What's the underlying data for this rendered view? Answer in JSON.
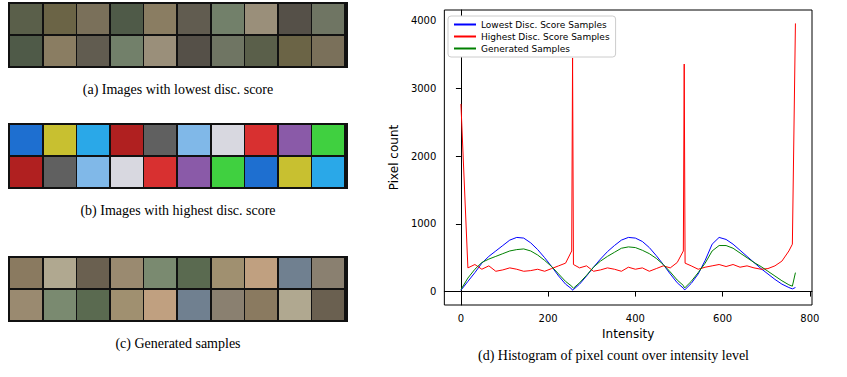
{
  "panels": [
    {
      "caption": "(a) Images with lowest disc. score"
    },
    {
      "caption": "(b) Images with highest disc. score"
    },
    {
      "caption": "(c) Generated samples"
    }
  ],
  "chart_data": {
    "type": "line",
    "title": "(d) Histogram of pixel count over intensity level",
    "x_label": "Intensity",
    "y_label": "Pixel count",
    "x": [
      0,
      16,
      32,
      48,
      64,
      80,
      96,
      112,
      128,
      144,
      160,
      176,
      192,
      208,
      224,
      240,
      254,
      256,
      258,
      272,
      288,
      304,
      320,
      336,
      352,
      368,
      384,
      400,
      416,
      432,
      448,
      464,
      480,
      496,
      510,
      512,
      514,
      528,
      544,
      560,
      576,
      592,
      608,
      624,
      640,
      656,
      672,
      688,
      704,
      720,
      736,
      752,
      760,
      767
    ],
    "series": [
      {
        "name": "Lowest Disc. Score Samples",
        "color": "#0000ff",
        "values": [
          20,
          150,
          280,
          420,
          520,
          600,
          680,
          760,
          800,
          790,
          720,
          620,
          500,
          370,
          230,
          110,
          40,
          20,
          30,
          110,
          230,
          360,
          480,
          590,
          680,
          760,
          800,
          790,
          740,
          650,
          530,
          400,
          260,
          130,
          50,
          30,
          30,
          120,
          260,
          460,
          700,
          800,
          770,
          700,
          610,
          520,
          430,
          340,
          260,
          180,
          110,
          60,
          40,
          60
        ]
      },
      {
        "name": "Highest Disc. Score Samples",
        "color": "#ff0000",
        "values": [
          2770,
          350,
          400,
          330,
          380,
          300,
          320,
          350,
          330,
          300,
          310,
          330,
          300,
          340,
          380,
          420,
          600,
          3450,
          400,
          350,
          380,
          300,
          320,
          350,
          330,
          300,
          360,
          330,
          350,
          300,
          340,
          380,
          350,
          430,
          600,
          3360,
          420,
          380,
          330,
          360,
          380,
          400,
          370,
          400,
          360,
          380,
          350,
          330,
          340,
          380,
          450,
          600,
          700,
          3960
        ]
      },
      {
        "name": "Generated Samples",
        "color": "#008000",
        "values": [
          30,
          200,
          330,
          430,
          480,
          520,
          560,
          600,
          620,
          630,
          600,
          540,
          460,
          370,
          260,
          150,
          80,
          60,
          50,
          130,
          240,
          360,
          450,
          520,
          580,
          640,
          660,
          650,
          610,
          560,
          490,
          400,
          290,
          170,
          90,
          60,
          60,
          150,
          280,
          420,
          600,
          680,
          680,
          640,
          570,
          500,
          430,
          370,
          300,
          230,
          160,
          100,
          80,
          280
        ]
      }
    ],
    "xlim": [
      -38,
      805
    ],
    "xticks": [
      0,
      200,
      400,
      600,
      800
    ],
    "ylim": [
      -198,
      4158
    ],
    "yticks": [
      0,
      1000,
      2000,
      3000,
      4000
    ],
    "grid": false,
    "legend": "upper left"
  }
}
